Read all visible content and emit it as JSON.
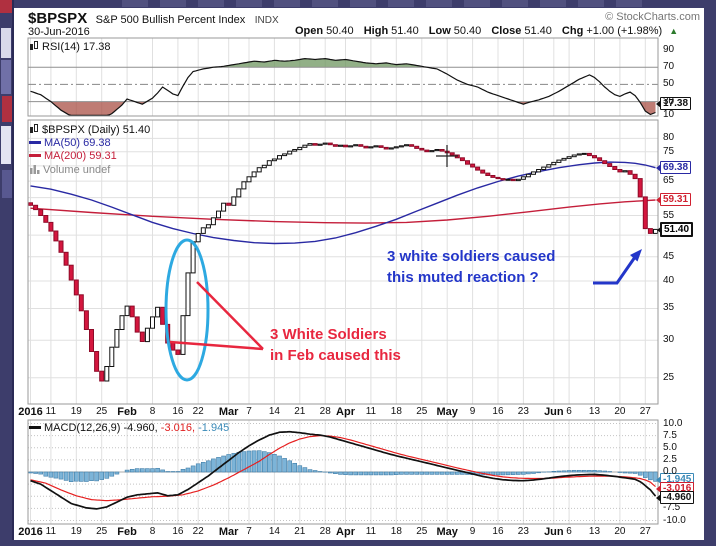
{
  "header": {
    "symbol": "$BPSPX",
    "name": "S&P 500 Bullish Percent Index",
    "exchange": "INDX",
    "copyright": "© StockCharts.com",
    "date": "30-Jun-2016",
    "ohlc": {
      "open_label": "Open",
      "open_value": "50.40",
      "high_label": "High",
      "high_value": "51.40",
      "low_label": "Low",
      "low_value": "50.40",
      "close_label": "Close",
      "close_value": "51.40",
      "chg_label": "Chg",
      "chg_value": "+1.00 (+1.98%)",
      "direction_icon": "▲"
    }
  },
  "colors": {
    "background": "#3d3d6b",
    "panel": "#ffffff",
    "up_candle": "#ffffff",
    "down_candle": "#d4163e",
    "ma50": "#2929a3",
    "ma200": "#c41e3a",
    "rsi_overbought_fill": "#6e965f",
    "rsi_oversold_fill": "#aa5046",
    "macd_line": "#111111",
    "macd_signal": "#e02020",
    "macd_hist": "#7cb4d8",
    "annotation_blue": "#2336c9",
    "annotation_red": "#e8273f",
    "ellipse_blue": "#2da9e1",
    "chg_up_green": "#2c7a2c"
  },
  "rsi_panel": {
    "legend": "RSI(14) 17.38",
    "value_box": "17.38"
  },
  "main_panel": {
    "legend_symbol": "$BPSPX (Daily) 51.40",
    "legend_ma50": "MA(50) 69.38",
    "legend_ma200": "MA(200) 59.31",
    "legend_volume": "Volume undef",
    "value_boxes": {
      "ma50": "69.38",
      "ma200": "59.31",
      "price": "51.40"
    }
  },
  "macd_panel": {
    "legend_name": "MACD(12,26,9)",
    "macd_value": "-4.960,",
    "signal_value": "-3.016,",
    "hist_value": "-1.945",
    "value_boxes": {
      "hist": "-1.945",
      "signal": "-3.016",
      "macd": "-4.960"
    }
  },
  "annotations": {
    "blue_note_line1": "3 white soldiers caused",
    "blue_note_line2": "this muted reaction ?",
    "red_note_line1": "3 White Soldiers",
    "red_note_line2": "in Feb caused this"
  },
  "chart_data": {
    "type": "candlestick",
    "symbol": "$BPSPX",
    "timeframe": "Daily, 04-Jan-2016 to 30-Jun-2016",
    "price_scale": "log",
    "legend_note": "histogram = macd_line - signal_line",
    "last_values": {
      "close": 51.4,
      "ma50": 69.38,
      "ma200": 59.31,
      "rsi": 17.38,
      "macd": -4.96,
      "macd_signal": -3.016,
      "macd_hist": -1.945,
      "open": 50.4,
      "high": 51.4,
      "low": 50.4,
      "chg": 1.0,
      "chg_pct": 1.98
    },
    "price_axis_ticks": [
      {
        "v": 80,
        "label": "80"
      },
      {
        "v": 75,
        "label": "75"
      },
      {
        "v": 65,
        "label": "65"
      },
      {
        "v": 55,
        "label": "55"
      },
      {
        "v": 45,
        "label": "45"
      },
      {
        "v": 40,
        "label": "40"
      },
      {
        "v": 35,
        "label": "35"
      },
      {
        "v": 30,
        "label": "30"
      },
      {
        "v": 25,
        "label": "25"
      }
    ],
    "price_gridlines": [
      25,
      30,
      35,
      40,
      45,
      50,
      55,
      60,
      65,
      70,
      75,
      80
    ],
    "rsi_axis_ticks": [
      {
        "v": 90,
        "label": "90"
      },
      {
        "v": 70,
        "label": "70"
      },
      {
        "v": 50,
        "label": "50"
      },
      {
        "v": 30,
        "label": "30"
      },
      {
        "v": 10,
        "label": "10"
      }
    ],
    "macd_axis_ticks": [
      {
        "v": 10,
        "label": "10.0"
      },
      {
        "v": 7.5,
        "label": "7.5"
      },
      {
        "v": 5,
        "label": "5.0"
      },
      {
        "v": 2.5,
        "label": "2.5"
      },
      {
        "v": 0,
        "label": "0.0"
      },
      {
        "v": -7.5,
        "label": "-7.5"
      },
      {
        "v": -10,
        "label": "-10.0"
      }
    ],
    "macd_gridlines": [
      -10,
      -7.5,
      -5,
      -2.5,
      2.5,
      5,
      7.5,
      10
    ],
    "x_ticks": [
      {
        "d": 0,
        "label": "2016",
        "bold": true
      },
      {
        "d": 4,
        "label": "11"
      },
      {
        "d": 9,
        "label": "19"
      },
      {
        "d": 14,
        "label": "25"
      },
      {
        "d": 19,
        "label": "Feb",
        "bold": true
      },
      {
        "d": 24,
        "label": "8"
      },
      {
        "d": 29,
        "label": "16"
      },
      {
        "d": 33,
        "label": "22"
      },
      {
        "d": 39,
        "label": "Mar",
        "bold": true
      },
      {
        "d": 43,
        "label": "7"
      },
      {
        "d": 48,
        "label": "14"
      },
      {
        "d": 53,
        "label": "21"
      },
      {
        "d": 58,
        "label": "28"
      },
      {
        "d": 62,
        "label": "Apr",
        "bold": true
      },
      {
        "d": 67,
        "label": "11"
      },
      {
        "d": 72,
        "label": "18"
      },
      {
        "d": 77,
        "label": "25"
      },
      {
        "d": 82,
        "label": "May",
        "bold": true
      },
      {
        "d": 87,
        "label": "9"
      },
      {
        "d": 92,
        "label": "16"
      },
      {
        "d": 97,
        "label": "23"
      },
      {
        "d": 103,
        "label": "Jun",
        "bold": true
      },
      {
        "d": 106,
        "label": "6"
      },
      {
        "d": 111,
        "label": "13"
      },
      {
        "d": 116,
        "label": "20"
      },
      {
        "d": 121,
        "label": "27"
      }
    ],
    "candles": {
      "first_open": 58.5,
      "closes": [
        57.8,
        56.6,
        55.0,
        53.2,
        51.0,
        48.6,
        46.0,
        43.2,
        40.2,
        37.4,
        34.6,
        31.6,
        28.4,
        25.8,
        24.6,
        26.4,
        29.0,
        31.6,
        33.8,
        35.4,
        33.6,
        31.2,
        29.8,
        31.8,
        33.6,
        35.2,
        32.4,
        29.6,
        28.6,
        28.0,
        33.8,
        41.6,
        48.4,
        50.4,
        51.8,
        52.6,
        54.4,
        56.2,
        58.4,
        57.8,
        60.2,
        62.6,
        64.8,
        66.4,
        68.0,
        69.4,
        70.2,
        71.8,
        72.4,
        73.6,
        74.2,
        75.2,
        75.8,
        76.6,
        77.4,
        78.0,
        77.4,
        77.8,
        78.2,
        77.6,
        77.0,
        77.4,
        76.8,
        77.2,
        77.6,
        77.0,
        76.4,
        76.8,
        77.2,
        76.6,
        76.0,
        76.4,
        76.8,
        77.2,
        77.6,
        77.0,
        76.2,
        75.6,
        75.0,
        75.4,
        75.8,
        75.2,
        74.6,
        73.8,
        72.8,
        71.8,
        70.6,
        69.6,
        68.6,
        67.6,
        66.8,
        66.2,
        65.8,
        65.4,
        65.6,
        65.2,
        65.6,
        66.4,
        67.2,
        68.0,
        68.8,
        69.6,
        70.4,
        71.2,
        72.0,
        72.6,
        73.2,
        73.8,
        74.2,
        74.4,
        73.6,
        72.8,
        71.8,
        70.8,
        69.8,
        68.8,
        68.0,
        68.4,
        67.2,
        65.8,
        60.2,
        51.6,
        50.4,
        51.4
      ]
    },
    "ma50": [
      [
        0,
        63.5
      ],
      [
        4,
        62.5
      ],
      [
        8,
        61.0
      ],
      [
        12,
        59.3
      ],
      [
        16,
        57.3
      ],
      [
        20,
        55.2
      ],
      [
        24,
        53.2
      ],
      [
        28,
        51.6
      ],
      [
        32,
        50.4
      ],
      [
        36,
        49.4
      ],
      [
        40,
        48.7
      ],
      [
        44,
        48.2
      ],
      [
        48,
        48.0
      ],
      [
        52,
        48.1
      ],
      [
        56,
        48.5
      ],
      [
        60,
        49.3
      ],
      [
        64,
        50.6
      ],
      [
        68,
        52.2
      ],
      [
        72,
        54.0
      ],
      [
        76,
        56.2
      ],
      [
        80,
        58.4
      ],
      [
        84,
        60.7
      ],
      [
        88,
        62.9
      ],
      [
        92,
        64.9
      ],
      [
        96,
        66.6
      ],
      [
        100,
        68.1
      ],
      [
        104,
        69.4
      ],
      [
        108,
        70.4
      ],
      [
        111,
        71.0
      ],
      [
        114,
        71.3
      ],
      [
        117,
        71.2
      ],
      [
        119,
        70.9
      ],
      [
        121,
        70.3
      ],
      [
        123,
        69.38
      ]
    ],
    "ma200": [
      [
        0,
        57.0
      ],
      [
        12,
        55.8
      ],
      [
        24,
        54.8
      ],
      [
        36,
        54.0
      ],
      [
        48,
        53.4
      ],
      [
        58,
        53.1
      ],
      [
        66,
        53.0
      ],
      [
        74,
        53.2
      ],
      [
        82,
        53.8
      ],
      [
        90,
        54.8
      ],
      [
        98,
        56.0
      ],
      [
        106,
        57.3
      ],
      [
        112,
        58.2
      ],
      [
        117,
        58.8
      ],
      [
        120,
        59.05
      ],
      [
        123,
        59.31
      ]
    ],
    "rsi": [
      [
        0,
        42
      ],
      [
        2,
        38
      ],
      [
        4,
        30
      ],
      [
        6,
        20
      ],
      [
        8,
        13
      ],
      [
        10,
        10
      ],
      [
        12,
        9
      ],
      [
        14,
        10
      ],
      [
        16,
        16
      ],
      [
        18,
        26
      ],
      [
        19,
        33
      ],
      [
        20,
        31
      ],
      [
        22,
        27
      ],
      [
        24,
        34
      ],
      [
        25,
        40
      ],
      [
        26,
        47
      ],
      [
        27,
        43
      ],
      [
        28,
        39
      ],
      [
        29,
        37
      ],
      [
        30,
        48
      ],
      [
        31,
        58
      ],
      [
        32,
        65
      ],
      [
        34,
        68
      ],
      [
        36,
        70
      ],
      [
        38,
        71
      ],
      [
        40,
        73
      ],
      [
        42,
        75
      ],
      [
        44,
        77
      ],
      [
        46,
        76
      ],
      [
        48,
        78
      ],
      [
        50,
        77
      ],
      [
        52,
        78
      ],
      [
        54,
        80
      ],
      [
        56,
        79
      ],
      [
        58,
        80
      ],
      [
        60,
        78
      ],
      [
        62,
        79
      ],
      [
        64,
        77
      ],
      [
        66,
        75
      ],
      [
        68,
        74
      ],
      [
        70,
        75
      ],
      [
        72,
        73
      ],
      [
        74,
        74
      ],
      [
        76,
        72
      ],
      [
        78,
        70
      ],
      [
        80,
        68
      ],
      [
        82,
        62
      ],
      [
        84,
        55
      ],
      [
        86,
        50
      ],
      [
        88,
        47
      ],
      [
        90,
        41
      ],
      [
        92,
        37
      ],
      [
        94,
        33
      ],
      [
        96,
        29
      ],
      [
        97,
        27
      ],
      [
        98,
        29
      ],
      [
        100,
        32
      ],
      [
        102,
        36
      ],
      [
        104,
        42
      ],
      [
        106,
        49
      ],
      [
        108,
        56
      ],
      [
        110,
        61
      ],
      [
        111,
        58
      ],
      [
        112,
        53
      ],
      [
        113,
        47
      ],
      [
        114,
        42
      ],
      [
        115,
        38
      ],
      [
        116,
        36
      ],
      [
        117,
        39
      ],
      [
        118,
        41
      ],
      [
        119,
        37
      ],
      [
        120,
        29
      ],
      [
        121,
        19
      ],
      [
        122,
        15
      ],
      [
        123,
        17.38
      ]
    ],
    "macd_line": [
      [
        0,
        -1.8
      ],
      [
        2,
        -2.5
      ],
      [
        5,
        -4.5
      ],
      [
        8,
        -6.5
      ],
      [
        11,
        -7.4
      ],
      [
        13,
        -7.6
      ],
      [
        15,
        -7.2
      ],
      [
        17,
        -6.2
      ],
      [
        19,
        -5.2
      ],
      [
        21,
        -4.7
      ],
      [
        23,
        -4.5
      ],
      [
        25,
        -4.3
      ],
      [
        27,
        -4.9
      ],
      [
        29,
        -4.7
      ],
      [
        31,
        -3.6
      ],
      [
        33,
        -2.2
      ],
      [
        35,
        -0.8
      ],
      [
        37,
        0.8
      ],
      [
        39,
        2.4
      ],
      [
        41,
        4.0
      ],
      [
        43,
        5.4
      ],
      [
        45,
        6.6
      ],
      [
        47,
        7.6
      ],
      [
        49,
        8.2
      ],
      [
        51,
        8.3
      ],
      [
        53,
        8.1
      ],
      [
        55,
        7.8
      ],
      [
        57,
        7.6
      ],
      [
        59,
        7.2
      ],
      [
        61,
        6.6
      ],
      [
        63,
        6.0
      ],
      [
        65,
        5.4
      ],
      [
        67,
        4.8
      ],
      [
        69,
        4.2
      ],
      [
        71,
        3.6
      ],
      [
        73,
        3.1
      ],
      [
        75,
        2.6
      ],
      [
        77,
        2.1
      ],
      [
        79,
        1.6
      ],
      [
        81,
        1.1
      ],
      [
        83,
        0.6
      ],
      [
        85,
        0.1
      ],
      [
        87,
        -0.4
      ],
      [
        89,
        -0.9
      ],
      [
        91,
        -1.3
      ],
      [
        93,
        -1.6
      ],
      [
        95,
        -1.75
      ],
      [
        97,
        -1.8
      ],
      [
        99,
        -1.65
      ],
      [
        101,
        -1.4
      ],
      [
        103,
        -1.1
      ],
      [
        105,
        -0.85
      ],
      [
        107,
        -0.65
      ],
      [
        109,
        -0.55
      ],
      [
        111,
        -0.5
      ],
      [
        113,
        -0.65
      ],
      [
        115,
        -0.9
      ],
      [
        117,
        -1.2
      ],
      [
        119,
        -1.5
      ],
      [
        120,
        -2.0
      ],
      [
        121,
        -2.8
      ],
      [
        122,
        -3.7
      ],
      [
        123,
        -4.96
      ]
    ],
    "signal_line": [
      [
        0,
        -1.6
      ],
      [
        3,
        -2.3
      ],
      [
        6,
        -3.7
      ],
      [
        9,
        -4.9
      ],
      [
        12,
        -5.7
      ],
      [
        15,
        -5.9
      ],
      [
        18,
        -5.7
      ],
      [
        21,
        -5.4
      ],
      [
        24,
        -5.1
      ],
      [
        27,
        -5.0
      ],
      [
        30,
        -4.7
      ],
      [
        33,
        -3.9
      ],
      [
        36,
        -2.7
      ],
      [
        39,
        -1.2
      ],
      [
        42,
        0.5
      ],
      [
        45,
        2.2
      ],
      [
        47,
        3.6
      ],
      [
        49,
        4.9
      ],
      [
        51,
        6.0
      ],
      [
        53,
        6.8
      ],
      [
        55,
        7.3
      ],
      [
        57,
        7.5
      ],
      [
        59,
        7.4
      ],
      [
        61,
        7.1
      ],
      [
        63,
        6.6
      ],
      [
        65,
        6.0
      ],
      [
        67,
        5.4
      ],
      [
        69,
        4.8
      ],
      [
        71,
        4.2
      ],
      [
        73,
        3.6
      ],
      [
        75,
        3.1
      ],
      [
        77,
        2.6
      ],
      [
        79,
        2.1
      ],
      [
        81,
        1.6
      ],
      [
        83,
        1.1
      ],
      [
        85,
        0.6
      ],
      [
        87,
        0.15
      ],
      [
        89,
        -0.3
      ],
      [
        91,
        -0.7
      ],
      [
        93,
        -1.0
      ],
      [
        95,
        -1.2
      ],
      [
        97,
        -1.3
      ],
      [
        99,
        -1.35
      ],
      [
        101,
        -1.35
      ],
      [
        103,
        -1.25
      ],
      [
        105,
        -1.1
      ],
      [
        107,
        -1.0
      ],
      [
        109,
        -0.9
      ],
      [
        111,
        -0.85
      ],
      [
        113,
        -0.85
      ],
      [
        115,
        -0.9
      ],
      [
        117,
        -1.0
      ],
      [
        119,
        -1.2
      ],
      [
        120,
        -1.35
      ],
      [
        121,
        -1.65
      ],
      [
        122,
        -2.1
      ],
      [
        123,
        -3.016
      ]
    ]
  }
}
